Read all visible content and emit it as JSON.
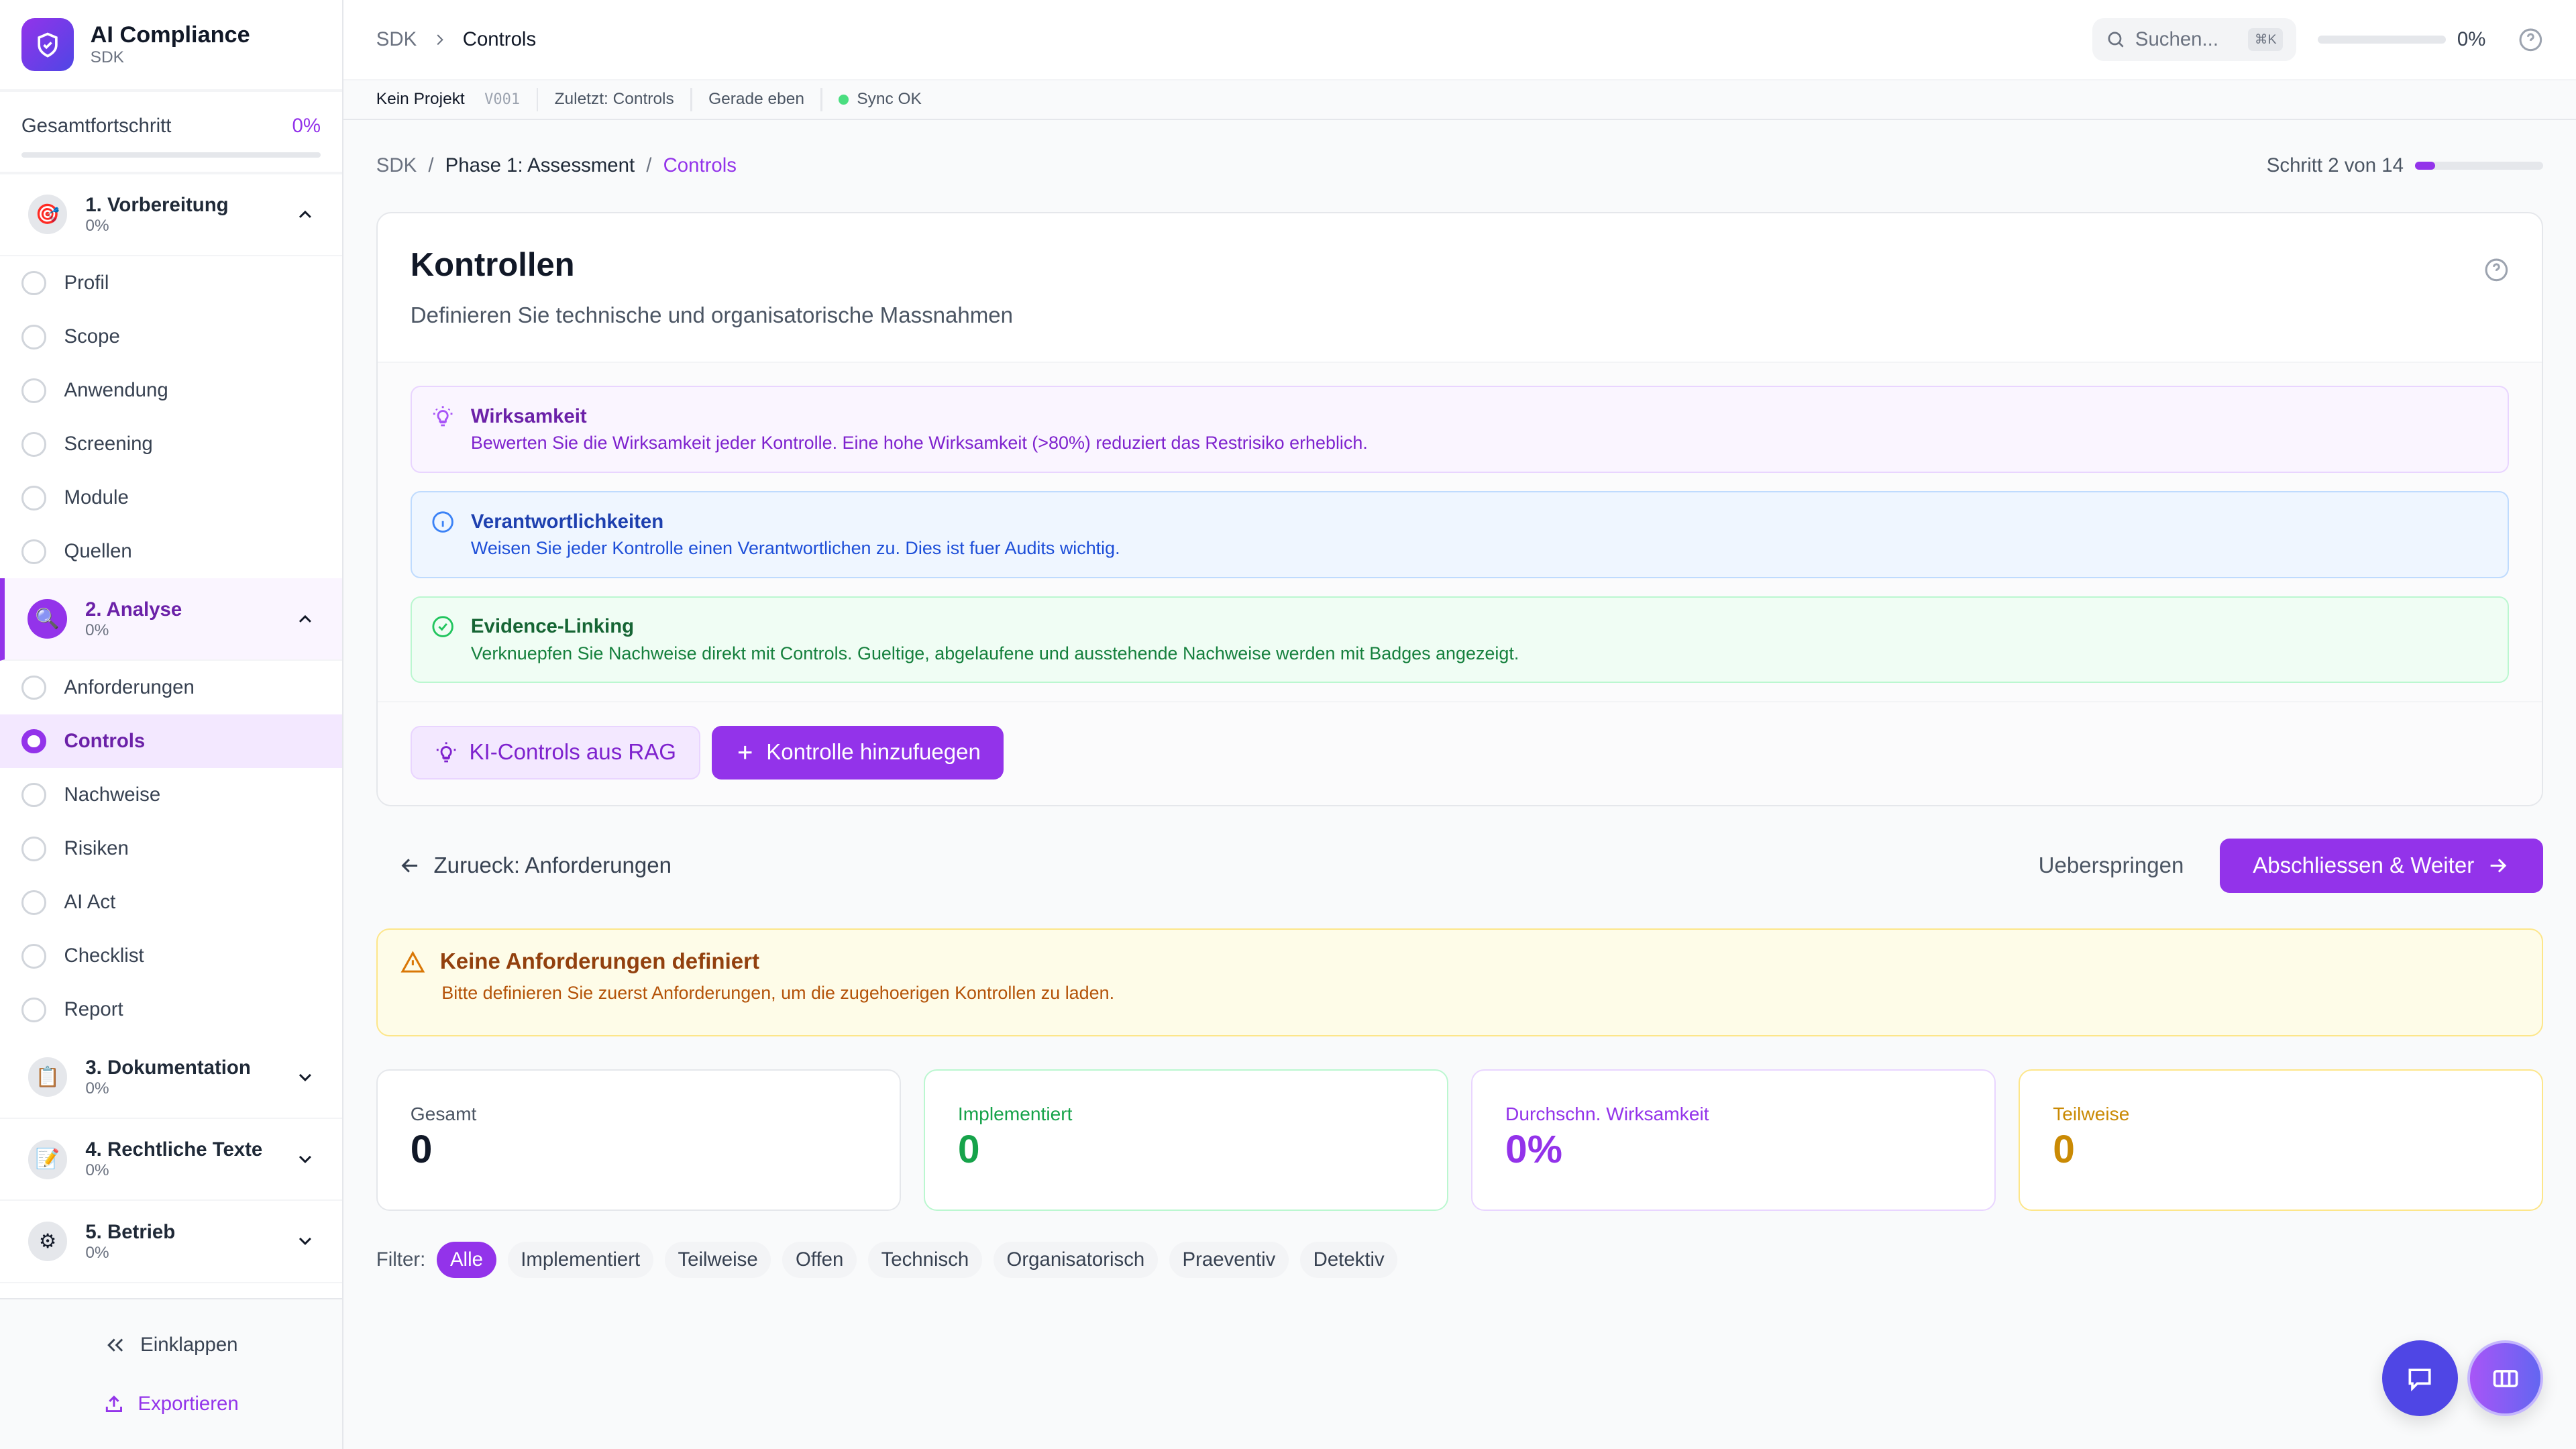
{
  "brand": {
    "title": "AI Compliance",
    "subtitle": "SDK"
  },
  "progress": {
    "label": "Gesamtfortschritt",
    "value": "0%",
    "fraction": 0
  },
  "sections": [
    {
      "title": "1. Vorbereitung",
      "pct": "0%",
      "icon": "target-icon",
      "expanded": true,
      "items": [
        {
          "label": "Profil"
        },
        {
          "label": "Scope"
        },
        {
          "label": "Anwendung"
        },
        {
          "label": "Screening"
        },
        {
          "label": "Module"
        },
        {
          "label": "Quellen"
        }
      ]
    },
    {
      "title": "2. Analyse",
      "pct": "0%",
      "icon": "magnifier-icon",
      "expanded": true,
      "items": [
        {
          "label": "Anforderungen"
        },
        {
          "label": "Controls",
          "active": true
        },
        {
          "label": "Nachweise"
        },
        {
          "label": "Risiken"
        },
        {
          "label": "AI Act"
        },
        {
          "label": "Checklist"
        },
        {
          "label": "Report"
        }
      ]
    },
    {
      "title": "3. Dokumentation",
      "pct": "0%",
      "icon": "clipboard-icon"
    },
    {
      "title": "4. Rechtliche Texte",
      "pct": "0%",
      "icon": "pencil-icon"
    },
    {
      "title": "5. Betrieb",
      "pct": "0%",
      "icon": "gear-icon"
    }
  ],
  "sidebar_footer": {
    "collapse": "Einklappen",
    "export": "Exportieren"
  },
  "topbar": {
    "crumb_root": "SDK",
    "crumb_current": "Controls",
    "search_placeholder": "Suchen...",
    "shortcut": "⌘K",
    "progress": "0%"
  },
  "subbar": {
    "project": "Kein Projekt",
    "version": "V001",
    "last": "Zuletzt: Controls",
    "time": "Gerade eben",
    "sync": "Sync OK"
  },
  "breadcrumb": {
    "root": "SDK",
    "phase": "Phase 1: Assessment",
    "current": "Controls",
    "sep": "/"
  },
  "step": {
    "label": "Schritt 2 von 14",
    "current": 2,
    "total": 14
  },
  "card": {
    "title": "Kontrollen",
    "subtitle": "Definieren Sie technische und organisatorische Massnahmen"
  },
  "tips": [
    {
      "title": "Wirksamkeit",
      "text": "Bewerten Sie die Wirksamkeit jeder Kontrolle. Eine hohe Wirksamkeit (>80%) reduziert das Restrisiko erheblich."
    },
    {
      "title": "Verantwortlichkeiten",
      "text": "Weisen Sie jeder Kontrolle einen Verantwortlichen zu. Dies ist fuer Audits wichtig."
    },
    {
      "title": "Evidence-Linking",
      "text": "Verknuepfen Sie Nachweise direkt mit Controls. Gueltige, abgelaufene und ausstehende Nachweise werden mit Badges angezeigt."
    }
  ],
  "actions": {
    "rag": "KI-Controls aus RAG",
    "add": "Kontrolle hinzufuegen"
  },
  "nav": {
    "back": "Zurueck: Anforderungen",
    "skip": "Ueberspringen",
    "next": "Abschliessen & Weiter"
  },
  "warning": {
    "title": "Keine Anforderungen definiert",
    "text": "Bitte definieren Sie zuerst Anforderungen, um die zugehoerigen Kontrollen zu laden."
  },
  "stats": [
    {
      "label": "Gesamt",
      "value": "0"
    },
    {
      "label": "Implementiert",
      "value": "0"
    },
    {
      "label": "Durchschn. Wirksamkeit",
      "value": "0%"
    },
    {
      "label": "Teilweise",
      "value": "0"
    }
  ],
  "filter": {
    "label": "Filter:",
    "options": [
      "Alle",
      "Implementiert",
      "Teilweise",
      "Offen",
      "Technisch",
      "Organisatorisch",
      "Praeventiv",
      "Detektiv"
    ],
    "selected": "Alle"
  },
  "colors": {
    "accent": "#9333ea",
    "chat": "#4f46e5"
  }
}
